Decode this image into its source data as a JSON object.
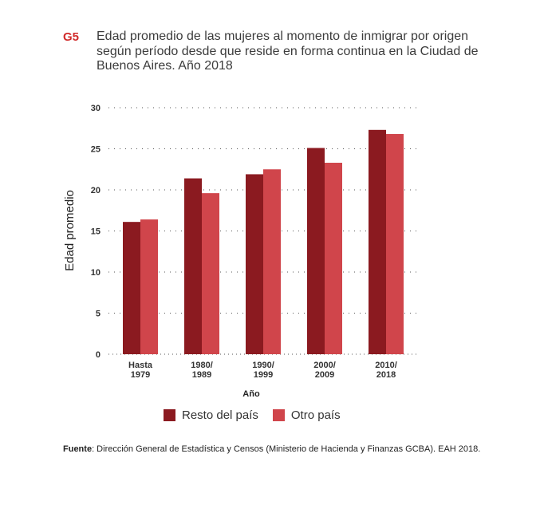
{
  "figure": {
    "label": "G5",
    "title": "Edad promedio de las mujeres al momento de inmigrar por origen según período desde que reside en forma continua en la Ciudad de Buenos Aires. Año 2018"
  },
  "colors": {
    "label": "#d12b2b",
    "series1": "#8b1a20",
    "series2": "#d0454b",
    "grid": "#555555"
  },
  "chart_data": {
    "type": "bar",
    "categories": [
      [
        "Hasta",
        "1979"
      ],
      [
        "1980/",
        "1989"
      ],
      [
        "1990/",
        "1999"
      ],
      [
        "2000/",
        "2009"
      ],
      [
        "2010/",
        "2018"
      ]
    ],
    "series": [
      {
        "name": "Resto del país",
        "values": [
          16.1,
          21.4,
          21.9,
          25.1,
          27.3
        ]
      },
      {
        "name": "Otro país",
        "values": [
          16.4,
          19.6,
          22.5,
          23.3,
          26.8
        ]
      }
    ],
    "yticks": [
      0,
      5,
      10,
      15,
      20,
      25,
      30
    ],
    "ylim": [
      0,
      30
    ],
    "xlabel": "Año",
    "ylabel": "Edad promedio",
    "grid": true,
    "legend_position": "bottom"
  },
  "source": {
    "label": "Fuente",
    "text": ": Dirección General de Estadística y Censos (Ministerio de Hacienda y Finanzas GCBA). EAH 2018."
  }
}
